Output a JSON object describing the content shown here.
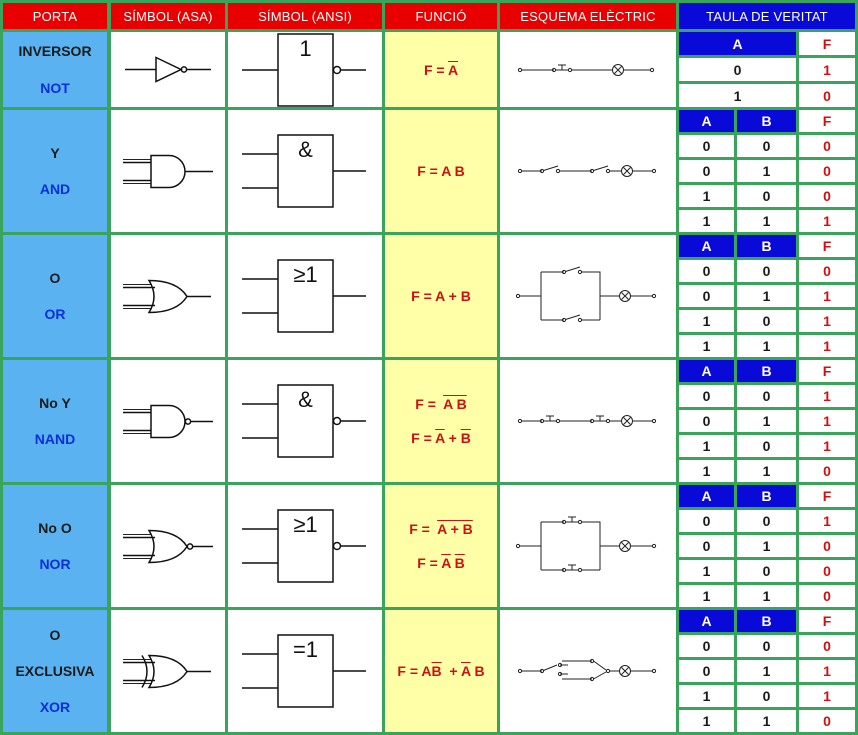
{
  "headers": {
    "porta": "PORTA",
    "simbol_asa": "SÍMBOL (ASA)",
    "simbol_ansi": "SÍMBOL (ANSI)",
    "funcio": "FUNCIÓ",
    "esquema": "ESQUEMA ELÈCTRIC",
    "taula": "TAULA DE VERITAT"
  },
  "colors": {
    "header_red": "#e80000",
    "header_blue": "#0a0ad8",
    "porta_bg": "#5ab3f0",
    "funcio_bg": "#ffffa8",
    "grid": "#3aa45a"
  },
  "gates": [
    {
      "id": "not",
      "name1": "INVERSOR",
      "name2": "NOT",
      "ansi": "1",
      "func": [
        {
          "p": [
            "F = ",
            {
              "t": "A",
              "o": true
            }
          ]
        }
      ],
      "tt_headers": [
        "A",
        "F"
      ],
      "tt_rows": [
        [
          "0",
          "1"
        ],
        [
          "1",
          "0"
        ]
      ]
    },
    {
      "id": "and",
      "name1": "Y",
      "name2": "AND",
      "ansi": "&",
      "func": [
        {
          "p": [
            "F = A B"
          ]
        }
      ],
      "tt_headers": [
        "A",
        "B",
        "F"
      ],
      "tt_rows": [
        [
          "0",
          "0",
          "0"
        ],
        [
          "0",
          "1",
          "0"
        ],
        [
          "1",
          "0",
          "0"
        ],
        [
          "1",
          "1",
          "1"
        ]
      ]
    },
    {
      "id": "or",
      "name1": "O",
      "name2": "OR",
      "ansi": "≥1",
      "func": [
        {
          "p": [
            "F = A + B"
          ]
        }
      ],
      "tt_headers": [
        "A",
        "B",
        "F"
      ],
      "tt_rows": [
        [
          "0",
          "0",
          "0"
        ],
        [
          "0",
          "1",
          "1"
        ],
        [
          "1",
          "0",
          "1"
        ],
        [
          "1",
          "1",
          "1"
        ]
      ]
    },
    {
      "id": "nand",
      "name1": "No Y",
      "name2": "NAND",
      "ansi": "&",
      "func": [
        {
          "p": [
            "F =  ",
            {
              "t": "A B",
              "o": true
            }
          ]
        },
        {
          "p": [
            "F = ",
            {
              "t": "A",
              "o": true
            },
            " + ",
            {
              "t": "B",
              "o": true
            }
          ]
        }
      ],
      "tt_headers": [
        "A",
        "B",
        "F"
      ],
      "tt_rows": [
        [
          "0",
          "0",
          "1"
        ],
        [
          "0",
          "1",
          "1"
        ],
        [
          "1",
          "0",
          "1"
        ],
        [
          "1",
          "1",
          "0"
        ]
      ]
    },
    {
      "id": "nor",
      "name1": "No O",
      "name2": "NOR",
      "ansi": "≥1",
      "func": [
        {
          "p": [
            "F =  ",
            {
              "t": "A + B",
              "o": true
            }
          ]
        },
        {
          "p": [
            "F = ",
            {
              "t": "A",
              "o": true
            },
            " ",
            {
              "t": "B",
              "o": true
            }
          ]
        }
      ],
      "tt_headers": [
        "A",
        "B",
        "F"
      ],
      "tt_rows": [
        [
          "0",
          "0",
          "1"
        ],
        [
          "0",
          "1",
          "0"
        ],
        [
          "1",
          "0",
          "0"
        ],
        [
          "1",
          "1",
          "0"
        ]
      ]
    },
    {
      "id": "xor",
      "name1": "O",
      "name1b": "EXCLUSIVA",
      "name2": "XOR",
      "ansi": "=1",
      "func": [
        {
          "p": [
            "F = A",
            {
              "t": "B",
              "o": true
            },
            "  + ",
            {
              "t": "A",
              "o": true
            },
            " B"
          ]
        }
      ],
      "tt_headers": [
        "A",
        "B",
        "F"
      ],
      "tt_rows": [
        [
          "0",
          "0",
          "0"
        ],
        [
          "0",
          "1",
          "1"
        ],
        [
          "1",
          "0",
          "1"
        ],
        [
          "1",
          "1",
          "0"
        ]
      ]
    }
  ]
}
